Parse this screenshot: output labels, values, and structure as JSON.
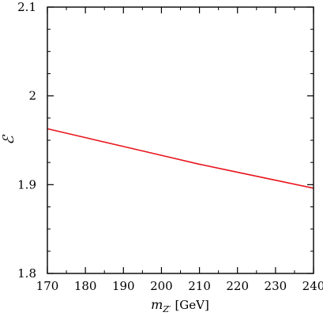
{
  "chart_data": {
    "type": "line",
    "xlabel": {
      "var": "m",
      "sub": "Z′",
      "unit": "[GeV]"
    },
    "ylabel": "ℰ",
    "xlim": [
      170,
      240
    ],
    "ylim": [
      1.8,
      2.1
    ],
    "x_ticks": [
      170,
      180,
      190,
      200,
      210,
      220,
      230,
      240
    ],
    "x_tick_labels": [
      "170",
      "180",
      "190",
      "200",
      "210",
      "220",
      "230",
      "240"
    ],
    "y_ticks": [
      1.8,
      1.9,
      2.0,
      2.1
    ],
    "y_tick_labels": [
      "1.8",
      "1.9",
      "2",
      "2.1"
    ],
    "x_minor_step": 5,
    "y_minor_step": 0.025,
    "grid": false,
    "series": [
      {
        "color": "#e8141b",
        "x": [
          170,
          180,
          190,
          200,
          210,
          220,
          230,
          240
        ],
        "y": [
          1.963,
          1.953,
          1.943,
          1.933,
          1.923,
          1.914,
          1.905,
          1.896
        ]
      }
    ]
  }
}
